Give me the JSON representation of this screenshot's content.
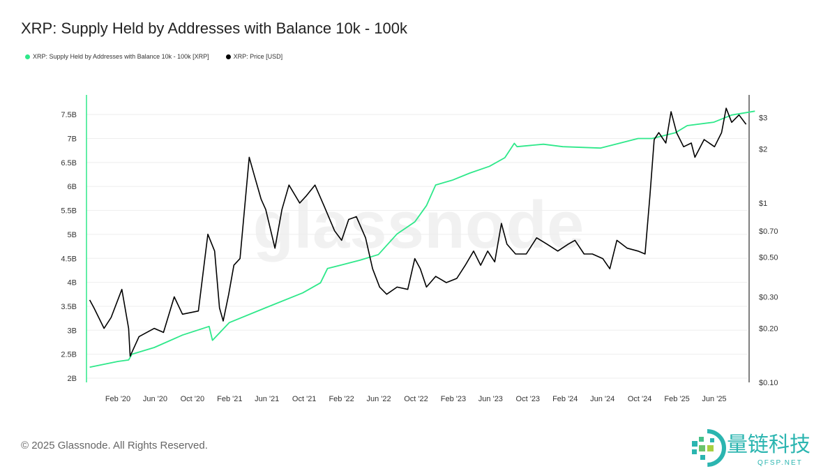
{
  "title": "XRP: Supply Held by Addresses with Balance 10k - 100k",
  "copyright": "© 2025 Glassnode. All Rights Reserved.",
  "watermark": "glassnode",
  "logo": {
    "text": "量链科技",
    "sub": "QFSP.NET"
  },
  "chart_data": {
    "type": "line",
    "title": "XRP: Supply Held by Addresses with Balance 10k - 100k",
    "legend_placement": "top-left",
    "grid": true,
    "x_ticks": [
      "Feb '20",
      "Jun '20",
      "Oct '20",
      "Feb '21",
      "Jun '21",
      "Oct '21",
      "Feb '22",
      "Jun '22",
      "Oct '22",
      "Feb '23",
      "Jun '23",
      "Oct '23",
      "Feb '24",
      "Jun '24",
      "Oct '24",
      "Feb '25",
      "Jun '25"
    ],
    "y_left": {
      "ticks": [
        "2B",
        "2.5B",
        "3B",
        "3.5B",
        "4B",
        "4.5B",
        "5B",
        "5.5B",
        "6B",
        "6.5B",
        "7B",
        "7.5B"
      ],
      "range": [
        2,
        7.7
      ],
      "unit": "B XRP"
    },
    "y_right": {
      "scale": "log",
      "ticks": [
        {
          "label": "$0.10",
          "v": 0.1
        },
        {
          "label": "$0.20",
          "v": 0.2
        },
        {
          "label": "$0.30",
          "v": 0.3
        },
        {
          "label": "$0.50",
          "v": 0.5
        },
        {
          "label": "$0.70",
          "v": 0.7
        },
        {
          "label": "$1",
          "v": 1
        },
        {
          "label": "$2",
          "v": 2
        },
        {
          "label": "$3",
          "v": 3
        }
      ],
      "range": [
        0.1,
        3.8
      ]
    },
    "series": [
      {
        "name": "XRP: Supply Held by Addresses with Balance 10k - 100k [XRP]",
        "color": "#2ee88a",
        "axis": "left",
        "points": [
          [
            "2019-11-01",
            2.23
          ],
          [
            "2020-02-01",
            2.35
          ],
          [
            "2020-03-07",
            2.38
          ],
          [
            "2020-03-18",
            2.5
          ],
          [
            "2020-05-30",
            2.64
          ],
          [
            "2020-08-30",
            2.9
          ],
          [
            "2020-11-25",
            3.08
          ],
          [
            "2020-12-06",
            2.79
          ],
          [
            "2021-01-30",
            3.16
          ],
          [
            "2021-05-29",
            3.47
          ],
          [
            "2021-09-27",
            3.78
          ],
          [
            "2021-11-24",
            3.99
          ],
          [
            "2021-12-17",
            4.29
          ],
          [
            "2022-01-30",
            4.36
          ],
          [
            "2022-04-01",
            4.46
          ],
          [
            "2022-06-01",
            4.58
          ],
          [
            "2022-08-01",
            5.01
          ],
          [
            "2022-09-28",
            5.26
          ],
          [
            "2022-11-05",
            5.6
          ],
          [
            "2022-12-05",
            6.03
          ],
          [
            "2023-01-28",
            6.13
          ],
          [
            "2023-03-27",
            6.28
          ],
          [
            "2023-05-30",
            6.42
          ],
          [
            "2023-07-19",
            6.6
          ],
          [
            "2023-08-19",
            6.9
          ],
          [
            "2023-08-28",
            6.83
          ],
          [
            "2023-11-22",
            6.88
          ],
          [
            "2024-01-24",
            6.83
          ],
          [
            "2024-05-26",
            6.8
          ],
          [
            "2024-09-26",
            7.0
          ],
          [
            "2024-11-11",
            7.0
          ],
          [
            "2025-01-26",
            7.12
          ],
          [
            "2025-03-06",
            7.27
          ],
          [
            "2025-06-01",
            7.34
          ],
          [
            "2025-07-29",
            7.49
          ],
          [
            "2025-10-13",
            7.57
          ]
        ]
      },
      {
        "name": "XRP: Price [USD]",
        "color": "#000000",
        "axis": "right",
        "points": [
          [
            "2019-11-01",
            0.288
          ],
          [
            "2019-11-15",
            0.26
          ],
          [
            "2019-12-18",
            0.2
          ],
          [
            "2020-01-10",
            0.23
          ],
          [
            "2020-02-14",
            0.33
          ],
          [
            "2020-03-07",
            0.2
          ],
          [
            "2020-03-12",
            0.14
          ],
          [
            "2020-04-10",
            0.18
          ],
          [
            "2020-05-30",
            0.2
          ],
          [
            "2020-06-29",
            0.19
          ],
          [
            "2020-08-03",
            0.3
          ],
          [
            "2020-08-30",
            0.24
          ],
          [
            "2020-10-21",
            0.25
          ],
          [
            "2020-11-21",
            0.67
          ],
          [
            "2020-12-13",
            0.54
          ],
          [
            "2020-12-29",
            0.26
          ],
          [
            "2021-01-10",
            0.22
          ],
          [
            "2021-01-28",
            0.31
          ],
          [
            "2021-02-14",
            0.45
          ],
          [
            "2021-03-06",
            0.49
          ],
          [
            "2021-04-05",
            1.8
          ],
          [
            "2021-04-21",
            1.44
          ],
          [
            "2021-05-14",
            1.05
          ],
          [
            "2021-05-29",
            0.92
          ],
          [
            "2021-06-28",
            0.56
          ],
          [
            "2021-07-21",
            0.92
          ],
          [
            "2021-08-13",
            1.26
          ],
          [
            "2021-09-17",
            1.0
          ],
          [
            "2021-10-09",
            1.1
          ],
          [
            "2021-11-06",
            1.26
          ],
          [
            "2021-12-06",
            0.96
          ],
          [
            "2022-01-09",
            0.7
          ],
          [
            "2022-02-01",
            0.62
          ],
          [
            "2022-02-24",
            0.81
          ],
          [
            "2022-03-21",
            0.84
          ],
          [
            "2022-04-20",
            0.64
          ],
          [
            "2022-05-13",
            0.43
          ],
          [
            "2022-06-05",
            0.34
          ],
          [
            "2022-06-28",
            0.31
          ],
          [
            "2022-08-01",
            0.34
          ],
          [
            "2022-09-05",
            0.33
          ],
          [
            "2022-09-28",
            0.49
          ],
          [
            "2022-10-16",
            0.43
          ],
          [
            "2022-11-05",
            0.34
          ],
          [
            "2022-12-05",
            0.39
          ],
          [
            "2023-01-09",
            0.36
          ],
          [
            "2023-02-12",
            0.38
          ],
          [
            "2023-03-12",
            0.45
          ],
          [
            "2023-04-08",
            0.54
          ],
          [
            "2023-05-01",
            0.45
          ],
          [
            "2023-05-24",
            0.54
          ],
          [
            "2023-06-16",
            0.47
          ],
          [
            "2023-07-08",
            0.77
          ],
          [
            "2023-07-26",
            0.59
          ],
          [
            "2023-08-23",
            0.52
          ],
          [
            "2023-09-27",
            0.52
          ],
          [
            "2023-10-31",
            0.64
          ],
          [
            "2023-12-04",
            0.59
          ],
          [
            "2024-01-08",
            0.54
          ],
          [
            "2024-02-11",
            0.59
          ],
          [
            "2024-03-04",
            0.62
          ],
          [
            "2024-04-03",
            0.52
          ],
          [
            "2024-04-30",
            0.52
          ],
          [
            "2024-06-03",
            0.49
          ],
          [
            "2024-06-26",
            0.43
          ],
          [
            "2024-07-19",
            0.62
          ],
          [
            "2024-08-22",
            0.56
          ],
          [
            "2024-09-26",
            0.54
          ],
          [
            "2024-10-19",
            0.52
          ],
          [
            "2024-11-04",
            1.1
          ],
          [
            "2024-11-18",
            2.26
          ],
          [
            "2024-12-03",
            2.47
          ],
          [
            "2024-12-26",
            2.16
          ],
          [
            "2025-01-12",
            3.23
          ],
          [
            "2025-01-30",
            2.47
          ],
          [
            "2025-02-22",
            2.06
          ],
          [
            "2025-03-19",
            2.16
          ],
          [
            "2025-03-31",
            1.8
          ],
          [
            "2025-04-30",
            2.26
          ],
          [
            "2025-06-03",
            2.06
          ],
          [
            "2025-06-26",
            2.47
          ],
          [
            "2025-07-11",
            3.38
          ],
          [
            "2025-07-29",
            2.82
          ],
          [
            "2025-08-22",
            3.1
          ],
          [
            "2025-09-14",
            2.75
          ]
        ]
      }
    ]
  }
}
